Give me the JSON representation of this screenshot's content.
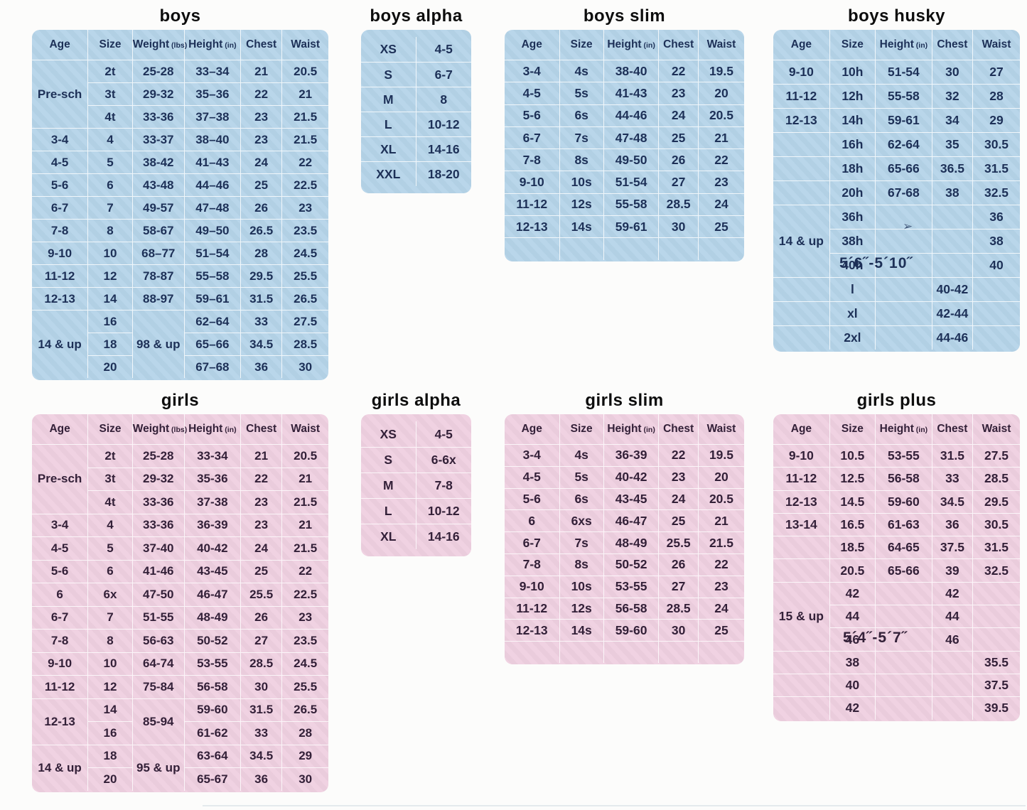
{
  "colors": {
    "page_bg": "#fcfcfb",
    "blue_bg": "#b5d4e9",
    "pink_bg": "#efd0e0",
    "blue_text": "#1d3057",
    "pink_text": "#332038",
    "title_text": "#0d0d0d",
    "grid_line": "#ffffff"
  },
  "tables": [
    {
      "id": "boys",
      "title": "boys",
      "theme": "blue",
      "headers": [
        {
          "t": "Age"
        },
        {
          "t": "Size"
        },
        {
          "t": "Weight",
          "u": "(lbs)"
        },
        {
          "t": "Height",
          "u": "(in)"
        },
        {
          "t": "Chest"
        },
        {
          "t": "Waist"
        }
      ],
      "rows": [
        [
          {
            "t": "Pre-sch",
            "rs": 3
          },
          "2t",
          "25-28",
          "33–34",
          "21",
          "20.5"
        ],
        [
          null,
          "3t",
          "29-32",
          "35–36",
          "22",
          "21"
        ],
        [
          null,
          "4t",
          "33-36",
          "37–38",
          "23",
          "21.5"
        ],
        [
          "3-4",
          "4",
          "33-37",
          "38–40",
          "23",
          "21.5"
        ],
        [
          "4-5",
          "5",
          "38-42",
          "41–43",
          "24",
          "22"
        ],
        [
          "5-6",
          "6",
          "43-48",
          "44–46",
          "25",
          "22.5"
        ],
        [
          "6-7",
          "7",
          "49-57",
          "47–48",
          "26",
          "23"
        ],
        [
          "7-8",
          "8",
          "58-67",
          "49–50",
          "26.5",
          "23.5"
        ],
        [
          "9-10",
          "10",
          "68–77",
          "51–54",
          "28",
          "24.5"
        ],
        [
          "11-12",
          "12",
          "78-87",
          "55–58",
          "29.5",
          "25.5"
        ],
        [
          "12-13",
          "14",
          "88-97",
          "59–61",
          "31.5",
          "26.5"
        ],
        [
          {
            "t": "14 & up",
            "rs": 3
          },
          "16",
          {
            "t": "98 & up",
            "rs": 3
          },
          "62–64",
          "33",
          "27.5"
        ],
        [
          null,
          "18",
          null,
          "65–66",
          "34.5",
          "28.5"
        ],
        [
          null,
          "20",
          null,
          "67–68",
          "36",
          "30"
        ]
      ]
    },
    {
      "id": "boys-alpha",
      "title": "boys alpha",
      "theme": "blue",
      "rows": [
        [
          "XS",
          "4-5"
        ],
        [
          "S",
          "6-7"
        ],
        [
          "M",
          "8"
        ],
        [
          "L",
          "10-12"
        ],
        [
          "XL",
          "14-16"
        ],
        [
          "XXL",
          "18-20"
        ]
      ]
    },
    {
      "id": "boys-slim",
      "title": "boys slim",
      "theme": "blue",
      "headers": [
        {
          "t": "Age"
        },
        {
          "t": "Size"
        },
        {
          "t": "Height",
          "u": "(in)"
        },
        {
          "t": "Chest"
        },
        {
          "t": "Waist"
        }
      ],
      "rows": [
        [
          "3-4",
          "4s",
          "38-40",
          "22",
          "19.5"
        ],
        [
          "4-5",
          "5s",
          "41-43",
          "23",
          "20"
        ],
        [
          "5-6",
          "6s",
          "44-46",
          "24",
          "20.5"
        ],
        [
          "6-7",
          "7s",
          "47-48",
          "25",
          "21"
        ],
        [
          "7-8",
          "8s",
          "49-50",
          "26",
          "22"
        ],
        [
          "9-10",
          "10s",
          "51-54",
          "27",
          "23"
        ],
        [
          "11-12",
          "12s",
          "55-58",
          "28.5",
          "24"
        ],
        [
          "12-13",
          "14s",
          "59-61",
          "30",
          "25"
        ],
        [
          "",
          "",
          "",
          "",
          ""
        ]
      ]
    },
    {
      "id": "boys-husky",
      "title": "boys husky",
      "theme": "blue",
      "headers": [
        {
          "t": "Age"
        },
        {
          "t": "Size"
        },
        {
          "t": "Height",
          "u": "(in)"
        },
        {
          "t": "Chest"
        },
        {
          "t": "Waist"
        }
      ],
      "height_note": "5´6˝-5´10˝",
      "arrow_mark": "➢",
      "rows": [
        [
          "9-10",
          "10h",
          "51-54",
          "30",
          "27"
        ],
        [
          "11-12",
          "12h",
          "55-58",
          "32",
          "28"
        ],
        [
          "12-13",
          "14h",
          "59-61",
          "34",
          "29"
        ],
        [
          "",
          "16h",
          "62-64",
          "35",
          "30.5"
        ],
        [
          "",
          "18h",
          "65-66",
          "36.5",
          "31.5"
        ],
        [
          "",
          "20h",
          "67-68",
          "38",
          "32.5"
        ],
        [
          {
            "t": "14 & up",
            "rs": 3
          },
          "36h",
          "",
          "",
          "36"
        ],
        [
          null,
          "38h",
          "",
          "",
          "38"
        ],
        [
          null,
          "40h",
          "",
          "",
          "40"
        ],
        [
          "",
          "l",
          "",
          "40-42",
          ""
        ],
        [
          "",
          "xl",
          "",
          "42-44",
          ""
        ],
        [
          "",
          "2xl",
          "",
          "44-46",
          ""
        ]
      ]
    },
    {
      "id": "girls",
      "title": "girls",
      "theme": "pink",
      "headers": [
        {
          "t": "Age"
        },
        {
          "t": "Size"
        },
        {
          "t": "Weight",
          "u": "(lbs)"
        },
        {
          "t": "Height",
          "u": "(in)"
        },
        {
          "t": "Chest"
        },
        {
          "t": "Waist"
        }
      ],
      "rows": [
        [
          {
            "t": "Pre-sch",
            "rs": 3
          },
          "2t",
          "25-28",
          "33-34",
          "21",
          "20.5"
        ],
        [
          null,
          "3t",
          "29-32",
          "35-36",
          "22",
          "21"
        ],
        [
          null,
          "4t",
          "33-36",
          "37-38",
          "23",
          "21.5"
        ],
        [
          "3-4",
          "4",
          "33-36",
          "36-39",
          "23",
          "21"
        ],
        [
          "4-5",
          "5",
          "37-40",
          "40-42",
          "24",
          "21.5"
        ],
        [
          "5-6",
          "6",
          "41-46",
          "43-45",
          "25",
          "22"
        ],
        [
          "6",
          "6x",
          "47-50",
          "46-47",
          "25.5",
          "22.5"
        ],
        [
          "6-7",
          "7",
          "51-55",
          "48-49",
          "26",
          "23"
        ],
        [
          "7-8",
          "8",
          "56-63",
          "50-52",
          "27",
          "23.5"
        ],
        [
          "9-10",
          "10",
          "64-74",
          "53-55",
          "28.5",
          "24.5"
        ],
        [
          "11-12",
          "12",
          "75-84",
          "56-58",
          "30",
          "25.5"
        ],
        [
          {
            "t": "12-13",
            "rs": 2
          },
          "14",
          {
            "t": "85-94",
            "rs": 2
          },
          "59-60",
          "31.5",
          "26.5"
        ],
        [
          null,
          "16",
          null,
          "61-62",
          "33",
          "28"
        ],
        [
          {
            "t": "14 & up",
            "rs": 2
          },
          "18",
          {
            "t": "95 & up",
            "rs": 2
          },
          "63-64",
          "34.5",
          "29"
        ],
        [
          null,
          "20",
          null,
          "65-67",
          "36",
          "30"
        ]
      ]
    },
    {
      "id": "girls-alpha",
      "title": "girls alpha",
      "theme": "pink",
      "rows": [
        [
          "XS",
          "4-5"
        ],
        [
          "S",
          "6-6x"
        ],
        [
          "M",
          "7-8"
        ],
        [
          "L",
          "10-12"
        ],
        [
          "XL",
          "14-16"
        ]
      ]
    },
    {
      "id": "girls-slim",
      "title": "girls slim",
      "theme": "pink",
      "headers": [
        {
          "t": "Age"
        },
        {
          "t": "Size"
        },
        {
          "t": "Height",
          "u": "(in)"
        },
        {
          "t": "Chest"
        },
        {
          "t": "Waist"
        }
      ],
      "rows": [
        [
          "3-4",
          "4s",
          "36-39",
          "22",
          "19.5"
        ],
        [
          "4-5",
          "5s",
          "40-42",
          "23",
          "20"
        ],
        [
          "5-6",
          "6s",
          "43-45",
          "24",
          "20.5"
        ],
        [
          "6",
          "6xs",
          "46-47",
          "25",
          "21"
        ],
        [
          "6-7",
          "7s",
          "48-49",
          "25.5",
          "21.5"
        ],
        [
          "7-8",
          "8s",
          "50-52",
          "26",
          "22"
        ],
        [
          "9-10",
          "10s",
          "53-55",
          "27",
          "23"
        ],
        [
          "11-12",
          "12s",
          "56-58",
          "28.5",
          "24"
        ],
        [
          "12-13",
          "14s",
          "59-60",
          "30",
          "25"
        ],
        [
          "",
          "",
          "",
          "",
          ""
        ]
      ]
    },
    {
      "id": "girls-plus",
      "title": "girls plus",
      "theme": "pink",
      "headers": [
        {
          "t": "Age"
        },
        {
          "t": "Size"
        },
        {
          "t": "Height",
          "u": "(in)"
        },
        {
          "t": "Chest"
        },
        {
          "t": "Waist"
        }
      ],
      "height_note": "5´4˝-5´7˝",
      "rows": [
        [
          "9-10",
          "10.5",
          "53-55",
          "31.5",
          "27.5"
        ],
        [
          "11-12",
          "12.5",
          "56-58",
          "33",
          "28.5"
        ],
        [
          "12-13",
          "14.5",
          "59-60",
          "34.5",
          "29.5"
        ],
        [
          "13-14",
          "16.5",
          "61-63",
          "36",
          "30.5"
        ],
        [
          "",
          "18.5",
          "64-65",
          "37.5",
          "31.5"
        ],
        [
          "",
          "20.5",
          "65-66",
          "39",
          "32.5"
        ],
        [
          {
            "t": "15 & up",
            "rs": 3
          },
          "42",
          "",
          "42",
          ""
        ],
        [
          null,
          "44",
          "",
          "44",
          ""
        ],
        [
          null,
          "46",
          "",
          "46",
          ""
        ],
        [
          "",
          "38",
          "",
          "",
          "35.5"
        ],
        [
          "",
          "40",
          "",
          "",
          "37.5"
        ],
        [
          "",
          "42",
          "",
          "",
          "39.5"
        ]
      ]
    }
  ]
}
